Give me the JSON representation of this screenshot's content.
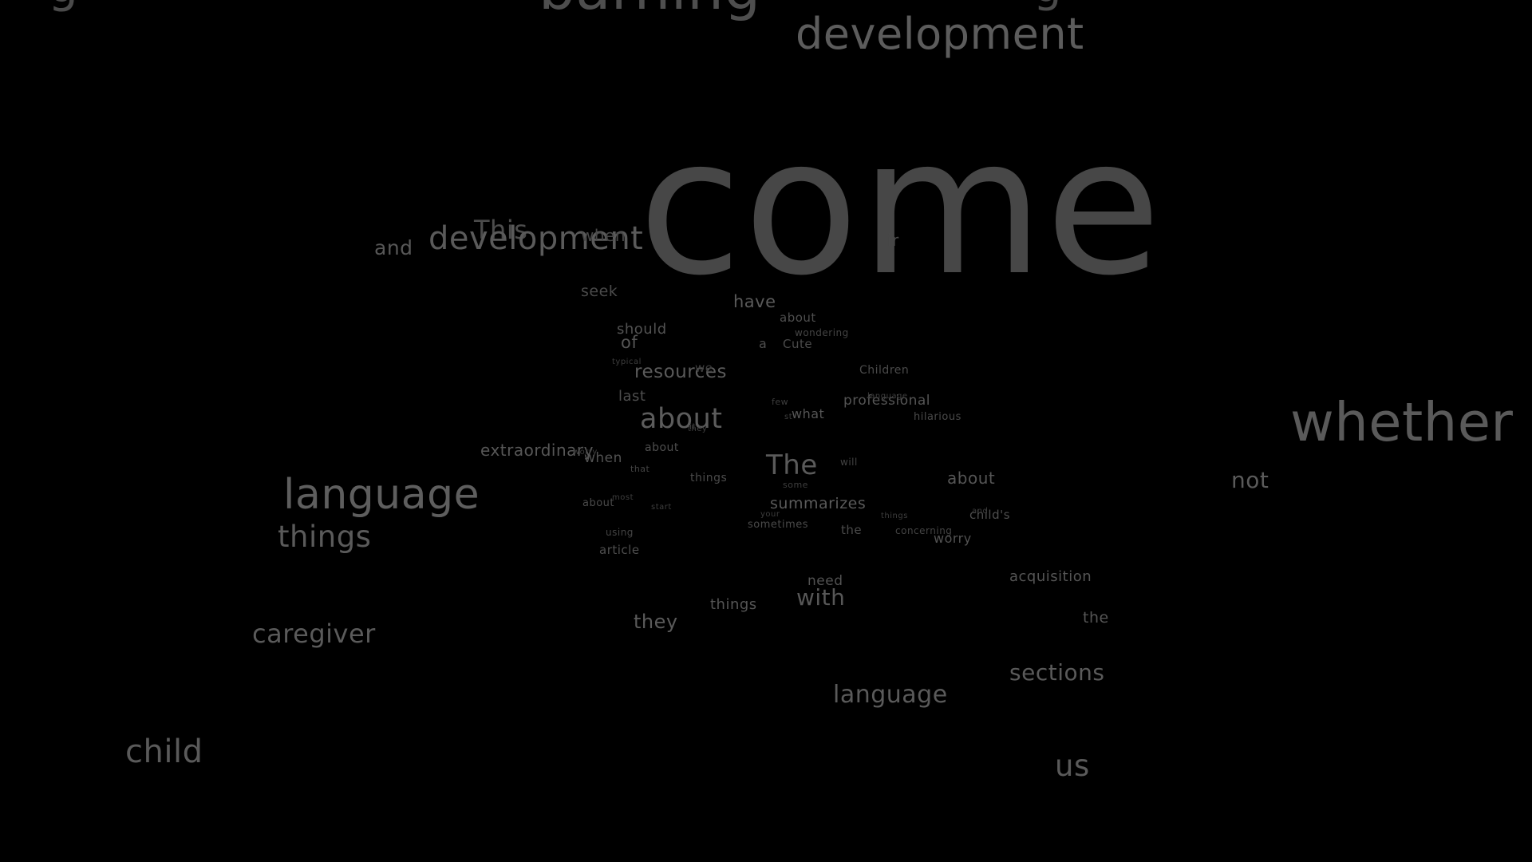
{
  "theme": {
    "background": "#000000",
    "text_color_light": "#666666",
    "text_color_mid": "#5a5a5a",
    "text_color_dim": "#3e3e3e"
  },
  "words": [
    "g",
    "barning",
    "g",
    "development",
    "come",
    "and",
    "This",
    "development",
    "when",
    "ir",
    "seek",
    "have",
    "about",
    "should",
    "wondering",
    "of",
    "a",
    "Cute",
    "typical",
    "resources",
    "we",
    "Children",
    "last",
    "few",
    "professional",
    "language",
    "about",
    "what",
    "it",
    "st",
    "hilarious",
    "extraordinary",
    "worry",
    "when",
    "about",
    "they",
    "that",
    "will",
    "The",
    "whether",
    "not",
    "things",
    "about",
    "some",
    "language",
    "about",
    "most",
    "start",
    "summarizes",
    "your",
    "things",
    "child's",
    "and",
    "things",
    "sometimes",
    "using",
    "the",
    "concerning",
    "worry",
    "article",
    "acquisition",
    "need",
    "with",
    "things",
    "they",
    "the",
    "caregiver",
    "sections",
    "language",
    "child",
    "us"
  ]
}
